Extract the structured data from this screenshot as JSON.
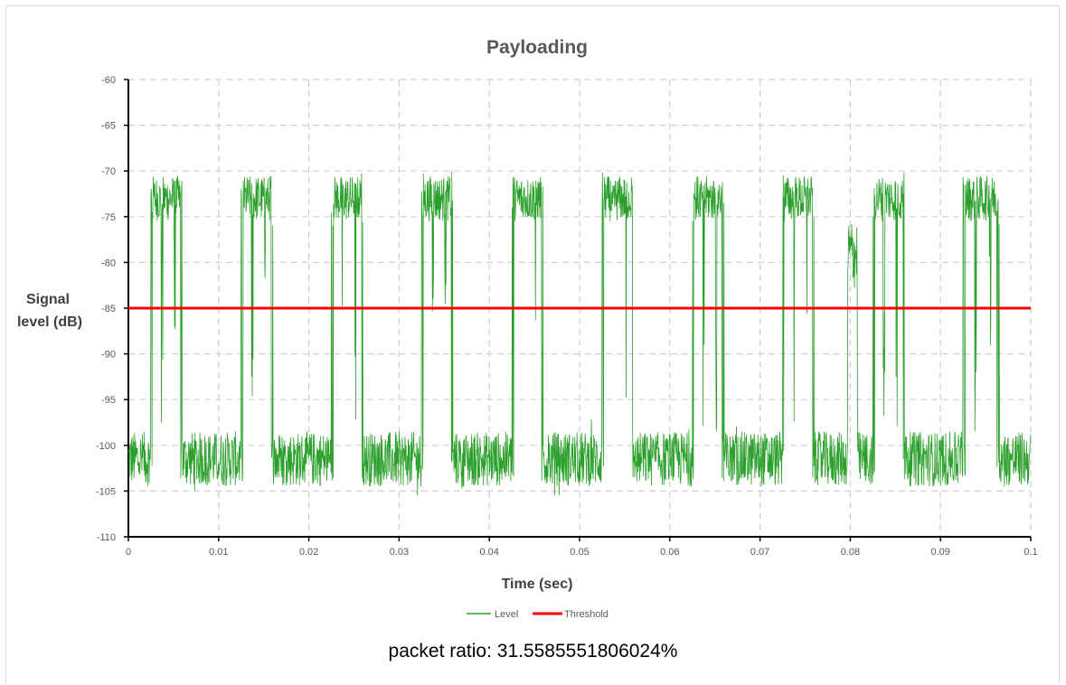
{
  "chart_data": {
    "type": "line",
    "title": "Payloading",
    "xlabel": "Time (sec)",
    "ylabel_lines": [
      "Signal",
      "level (dB)"
    ],
    "xlim": [
      0,
      0.1
    ],
    "ylim": [
      -110,
      -60
    ],
    "xticks": [
      0,
      0.01,
      0.02,
      0.03,
      0.04,
      0.05,
      0.06,
      0.07,
      0.08,
      0.09,
      0.1
    ],
    "xtick_labels": [
      "0",
      "0.01",
      "0.02",
      "0.03",
      "0.04",
      "0.05",
      "0.06",
      "0.07",
      "0.08",
      "0.09",
      "0.1"
    ],
    "yticks": [
      -110,
      -105,
      -100,
      -95,
      -90,
      -85,
      -80,
      -75,
      -70,
      -65,
      -60
    ],
    "ytick_labels": [
      "-110",
      "-105",
      "-100",
      "-95",
      "-90",
      "-85",
      "-80",
      "-75",
      "-70",
      "-65",
      "-60"
    ],
    "grid": true,
    "legend_position": "bottom",
    "series": [
      {
        "name": "Level",
        "color": "#2ca02c",
        "noise_floor_db": -101.5,
        "packet_level_db": -73,
        "packets": [
          {
            "start": 0.0025,
            "end": 0.006
          },
          {
            "start": 0.0125,
            "end": 0.016
          },
          {
            "start": 0.0225,
            "end": 0.026
          },
          {
            "start": 0.0325,
            "end": 0.036
          },
          {
            "start": 0.0425,
            "end": 0.046
          },
          {
            "start": 0.0525,
            "end": 0.056
          },
          {
            "start": 0.0625,
            "end": 0.066
          },
          {
            "start": 0.0725,
            "end": 0.076
          },
          {
            "start": 0.0825,
            "end": 0.086
          },
          {
            "start": 0.0925,
            "end": 0.0965
          }
        ],
        "interference": [
          {
            "start": 0.0797,
            "end": 0.0808,
            "level_db": -79
          }
        ]
      },
      {
        "name": "Threshold",
        "color": "#ff0000",
        "constant_db": -85
      }
    ]
  },
  "footer": {
    "packet_ratio_text": "packet ratio: 31.5585551806024%"
  }
}
